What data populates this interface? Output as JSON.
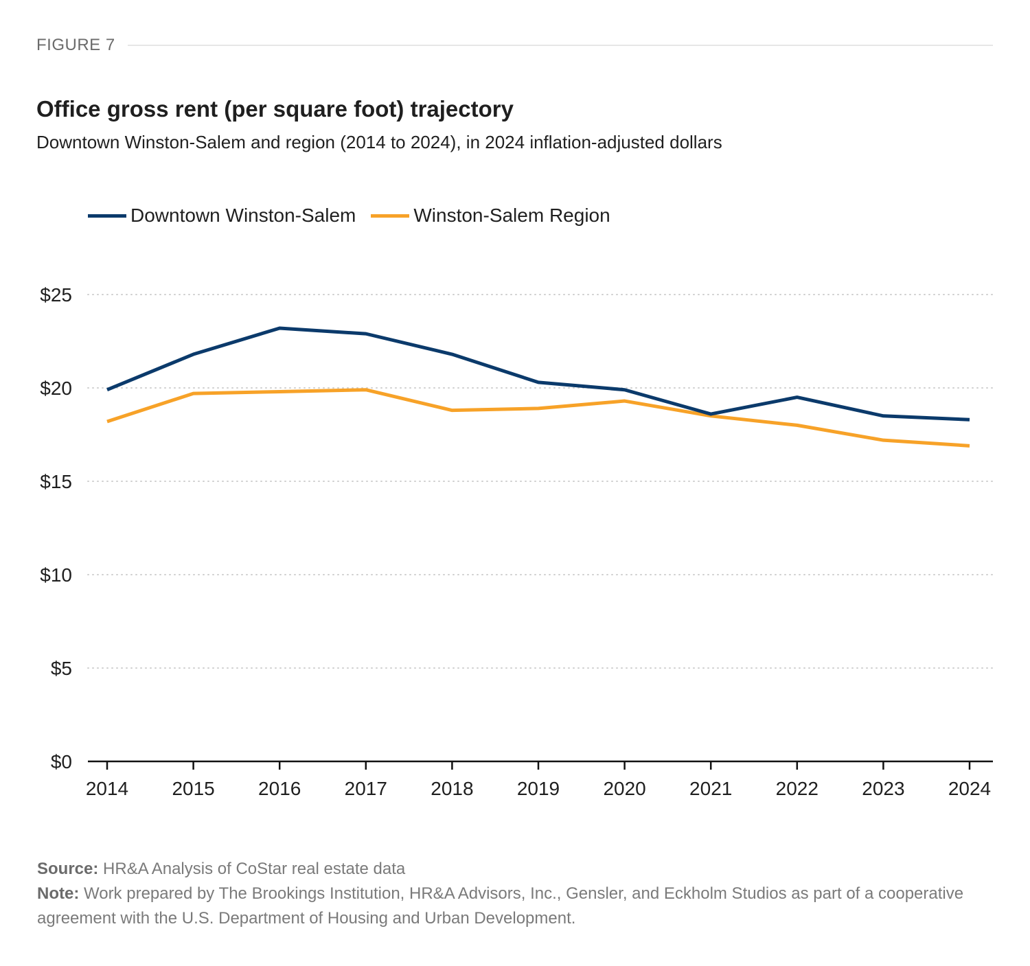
{
  "figure_label": "FIGURE 7",
  "title": "Office gross rent (per square foot) trajectory",
  "subtitle": "Downtown Winston-Salem and region (2014 to 2024), in 2024 inflation-adjusted dollars",
  "footer": {
    "source_label": "Source:",
    "source_text": " HR&A Analysis of CoStar real estate data",
    "note_label": "Note:",
    "note_text": " Work prepared by The Brookings Institution, HR&A Advisors, Inc., Gensler, and Eckholm Studios as part of a cooperative agreement with the U.S. Department of Housing and Urban Development."
  },
  "chart_data": {
    "type": "line",
    "title": "Office gross rent (per square foot) trajectory",
    "subtitle": "Downtown Winston-Salem and region (2014 to 2024), in 2024 inflation-adjusted dollars",
    "xlabel": "",
    "ylabel": "",
    "x": [
      "2014",
      "2015",
      "2016",
      "2017",
      "2018",
      "2019",
      "2020",
      "2021",
      "2022",
      "2023",
      "2024"
    ],
    "ylim": [
      0,
      25
    ],
    "yticks": [
      0,
      5,
      10,
      15,
      20,
      25
    ],
    "ytick_labels": [
      "$0",
      "$5",
      "$10",
      "$15",
      "$20",
      "$25"
    ],
    "grid": "horizontal dotted",
    "legend_position": "top-left",
    "series": [
      {
        "name": "Downtown Winston-Salem",
        "color": "#0b3a6b",
        "values": [
          19.9,
          21.8,
          23.2,
          22.9,
          21.8,
          20.3,
          19.9,
          18.6,
          19.5,
          18.5,
          18.3
        ]
      },
      {
        "name": "Winston-Salem Region",
        "color": "#f7a228",
        "values": [
          18.2,
          19.7,
          19.8,
          19.9,
          18.8,
          18.9,
          19.3,
          18.5,
          18.0,
          17.2,
          16.9
        ]
      }
    ]
  }
}
